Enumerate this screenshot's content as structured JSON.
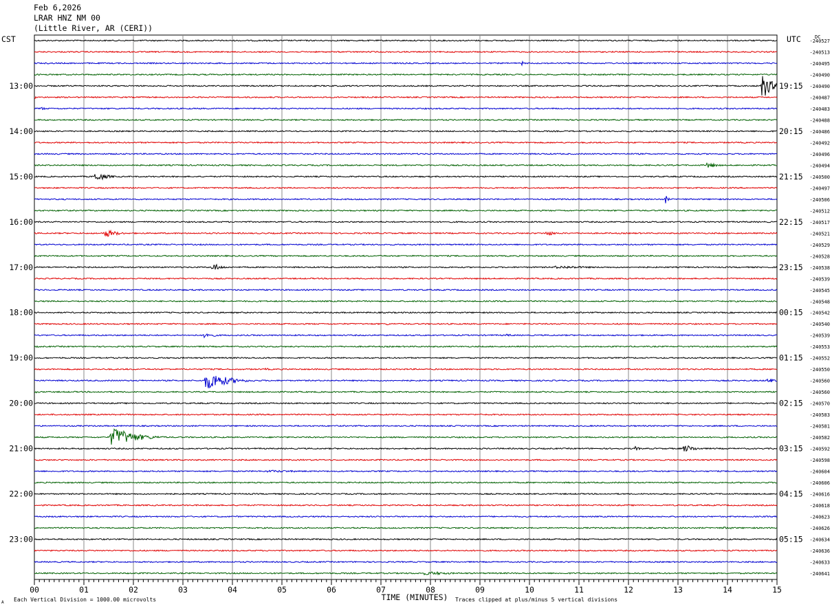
{
  "header": {
    "date": "Feb 6,2026",
    "station": "LRAR HNZ NM 00",
    "location": "(Little River, AR (CERI))"
  },
  "labels": {
    "left_zone": "CST",
    "right_zone": "UTC",
    "dc": "DC",
    "x_axis_title": "TIME (MINUTES)",
    "scale_note": "Each Vertical Division = 1000.00 microvolts",
    "clip_note": "Traces clipped at plus/minus 5 vertical divisions",
    "corner_mark": "A"
  },
  "chart_data": {
    "type": "line",
    "title": "Feb 6,2026  LRAR HNZ NM 00  (Little River, AR (CERI))",
    "xlabel": "TIME (MINUTES)",
    "xlim": [
      0,
      15
    ],
    "x_ticks": [
      "00",
      "01",
      "02",
      "03",
      "04",
      "05",
      "06",
      "07",
      "08",
      "09",
      "10",
      "11",
      "12",
      "13",
      "14",
      "15"
    ],
    "trace_colors": [
      "#000000",
      "#e00000",
      "#0000d0",
      "#006000"
    ],
    "left_time_labels": [
      "13:00",
      "14:00",
      "15:00",
      "16:00",
      "17:00",
      "18:00",
      "19:00",
      "20:00",
      "21:00",
      "22:00",
      "23:00"
    ],
    "right_time_labels": [
      "19:15",
      "20:15",
      "21:15",
      "22:15",
      "23:15",
      "00:15",
      "01:15",
      "02:15",
      "03:15",
      "04:15",
      "05:15"
    ],
    "trace_count": 48,
    "labeled_hours_start_at_trace": 4,
    "dc_offsets": [
      "240527",
      "240513",
      "240495",
      "240490",
      "240490",
      "240487",
      "240483",
      "240488",
      "240486",
      "240492",
      "240496",
      "240494",
      "240500",
      "240497",
      "240506",
      "240512",
      "240517",
      "240521",
      "240529",
      "240528",
      "240538",
      "240539",
      "240545",
      "240548",
      "240542",
      "240540",
      "240539",
      "240553",
      "240552",
      "240550",
      "240560",
      "240560",
      "240570",
      "240583",
      "240581",
      "240582",
      "240592",
      "240598",
      "240604",
      "240606",
      "240616",
      "240618",
      "240623",
      "240626",
      "240634",
      "240636",
      "240633",
      "240641"
    ],
    "events": [
      {
        "trace": 2,
        "minute": 9.85,
        "amp": 1.2,
        "dur": 0.08
      },
      {
        "trace": 4,
        "minute": 13.6,
        "amp": 1.0,
        "dur": 0.05
      },
      {
        "trace": 4,
        "minute": 14.75,
        "amp": 5,
        "dur": 0.5
      },
      {
        "trace": 5,
        "minute": 0.0,
        "amp": 0.8,
        "dur": 0.2
      },
      {
        "trace": 6,
        "minute": 0.15,
        "amp": 0.8,
        "dur": 0.25
      },
      {
        "trace": 11,
        "minute": 13.65,
        "amp": 1.2,
        "dur": 0.5
      },
      {
        "trace": 12,
        "minute": 1.3,
        "amp": 1.8,
        "dur": 0.6
      },
      {
        "trace": 14,
        "minute": 12.75,
        "amp": 2.0,
        "dur": 0.15
      },
      {
        "trace": 17,
        "minute": 1.5,
        "amp": 1.5,
        "dur": 0.7
      },
      {
        "trace": 17,
        "minute": 10.4,
        "amp": 1.0,
        "dur": 0.5
      },
      {
        "trace": 20,
        "minute": 3.65,
        "amp": 1.5,
        "dur": 0.5
      },
      {
        "trace": 20,
        "minute": 10.8,
        "amp": 0.6,
        "dur": 2.0
      },
      {
        "trace": 23,
        "minute": 12.95,
        "amp": 0.4,
        "dur": 0.1
      },
      {
        "trace": 25,
        "minute": 7.15,
        "amp": 0.5,
        "dur": 0.2
      },
      {
        "trace": 26,
        "minute": 3.5,
        "amp": 1.2,
        "dur": 0.5
      },
      {
        "trace": 26,
        "minute": 9.6,
        "amp": 0.5,
        "dur": 0.5
      },
      {
        "trace": 27,
        "minute": 6.75,
        "amp": 0.4,
        "dur": 0.1
      },
      {
        "trace": 29,
        "minute": 4.7,
        "amp": 0.5,
        "dur": 0.3
      },
      {
        "trace": 30,
        "minute": 3.6,
        "amp": 3.5,
        "dur": 1.1
      },
      {
        "trace": 30,
        "minute": 14.85,
        "amp": 1.0,
        "dur": 0.4
      },
      {
        "trace": 31,
        "minute": 0.05,
        "amp": 0.6,
        "dur": 0.2
      },
      {
        "trace": 35,
        "minute": 1.7,
        "amp": 3.8,
        "dur": 1.2
      },
      {
        "trace": 36,
        "minute": 12.15,
        "amp": 1.0,
        "dur": 0.25
      },
      {
        "trace": 36,
        "minute": 13.2,
        "amp": 1.4,
        "dur": 0.6
      },
      {
        "trace": 38,
        "minute": 5.0,
        "amp": 0.5,
        "dur": 2.0
      },
      {
        "trace": 43,
        "minute": 14.0,
        "amp": 0.5,
        "dur": 1.0
      },
      {
        "trace": 47,
        "minute": 8.1,
        "amp": 0.7,
        "dur": 1.5
      }
    ]
  }
}
